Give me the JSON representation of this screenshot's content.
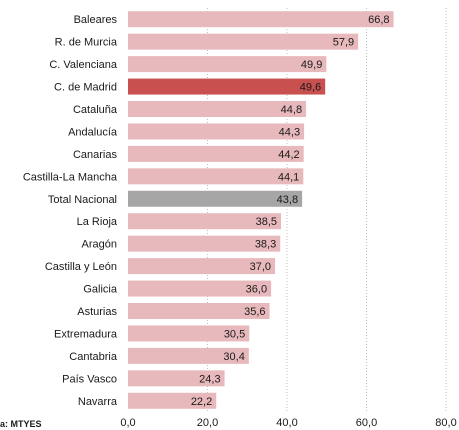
{
  "chart_data": {
    "type": "bar",
    "orientation": "horizontal",
    "categories": [
      "Baleares",
      "R. de Murcia",
      "C. Valenciana",
      "C. de Madrid",
      "Cataluña",
      "Andalucía",
      "Canarias",
      "Castilla-La Mancha",
      "Total Nacional",
      "La Rioja",
      "Aragón",
      "Castilla y León",
      "Galicia",
      "Asturias",
      "Extremadura",
      "Cantabria",
      "País Vasco",
      "Navarra"
    ],
    "values": [
      66.8,
      57.9,
      49.9,
      49.6,
      44.8,
      44.3,
      44.2,
      44.1,
      43.8,
      38.5,
      38.3,
      37.0,
      36.0,
      35.6,
      30.5,
      30.4,
      24.3,
      22.2
    ],
    "value_labels": [
      "66,8",
      "57,9",
      "49,9",
      "49,6",
      "44,8",
      "44,3",
      "44,2",
      "44,1",
      "43,8",
      "38,5",
      "38,3",
      "37,0",
      "36,0",
      "35,6",
      "30,5",
      "30,4",
      "24,3",
      "22,2"
    ],
    "xlim": [
      0,
      80
    ],
    "xticks": [
      0,
      20,
      40,
      60,
      80
    ],
    "xtick_labels": [
      "0,0",
      "20,0",
      "40,0",
      "60,0",
      "80,0"
    ],
    "grid": "vertical dotted",
    "legend": "none",
    "colors": {
      "default": "#e8b9bc",
      "highlight": "#c8504f",
      "total": "#a6a6a6",
      "grid": "#bfbfbf"
    },
    "highlight_index": 3,
    "total_index": 8
  },
  "source": "a: MTYES"
}
